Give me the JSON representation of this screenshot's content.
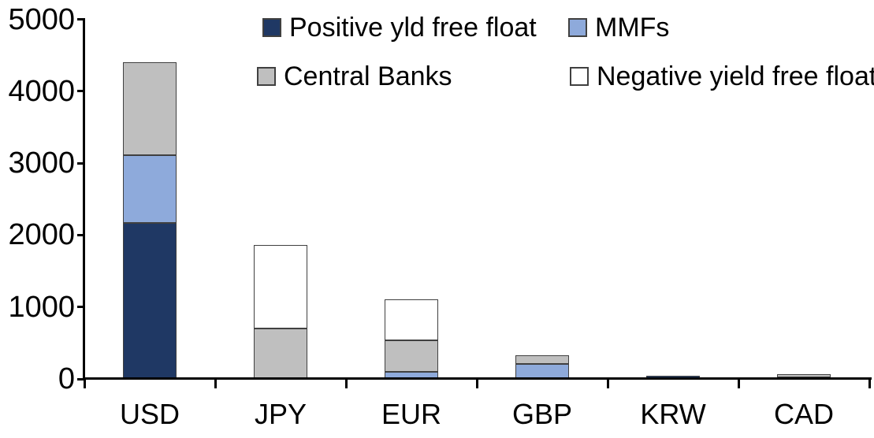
{
  "chart_data": {
    "type": "bar",
    "stacked": true,
    "categories": [
      "USD",
      "JPY",
      "EUR",
      "GBP",
      "KRW",
      "CAD"
    ],
    "series": [
      {
        "name": "Positive yld free float",
        "color": "#1F3864",
        "values": [
          2170,
          0,
          0,
          0,
          45,
          25
        ]
      },
      {
        "name": "MMFs",
        "color": "#8EAADB",
        "values": [
          940,
          0,
          100,
          205,
          0,
          0
        ]
      },
      {
        "name": "Central Banks",
        "color": "#BFBFBF",
        "values": [
          1290,
          700,
          435,
          125,
          0,
          40
        ]
      },
      {
        "name": "Negative yield free float",
        "color": "#FFFFFF",
        "values": [
          0,
          1160,
          575,
          0,
          0,
          0
        ]
      }
    ],
    "ylim": [
      0,
      5000
    ],
    "ytick_step": 1000,
    "yticks": [
      "0",
      "1000",
      "2000",
      "3000",
      "4000",
      "5000"
    ],
    "grid": false,
    "legend_position": "top"
  },
  "legend": {
    "items": [
      {
        "label": "Positive yld free float",
        "color": "#1F3864"
      },
      {
        "label": "MMFs",
        "color": "#8EAADB"
      },
      {
        "label": "Central Banks",
        "color": "#BFBFBF"
      },
      {
        "label": "Negative yield free float",
        "color": "#FFFFFF"
      }
    ]
  },
  "colors": {
    "axis": "#000000",
    "segment_border": "#404040",
    "background": "#FFFFFF"
  }
}
